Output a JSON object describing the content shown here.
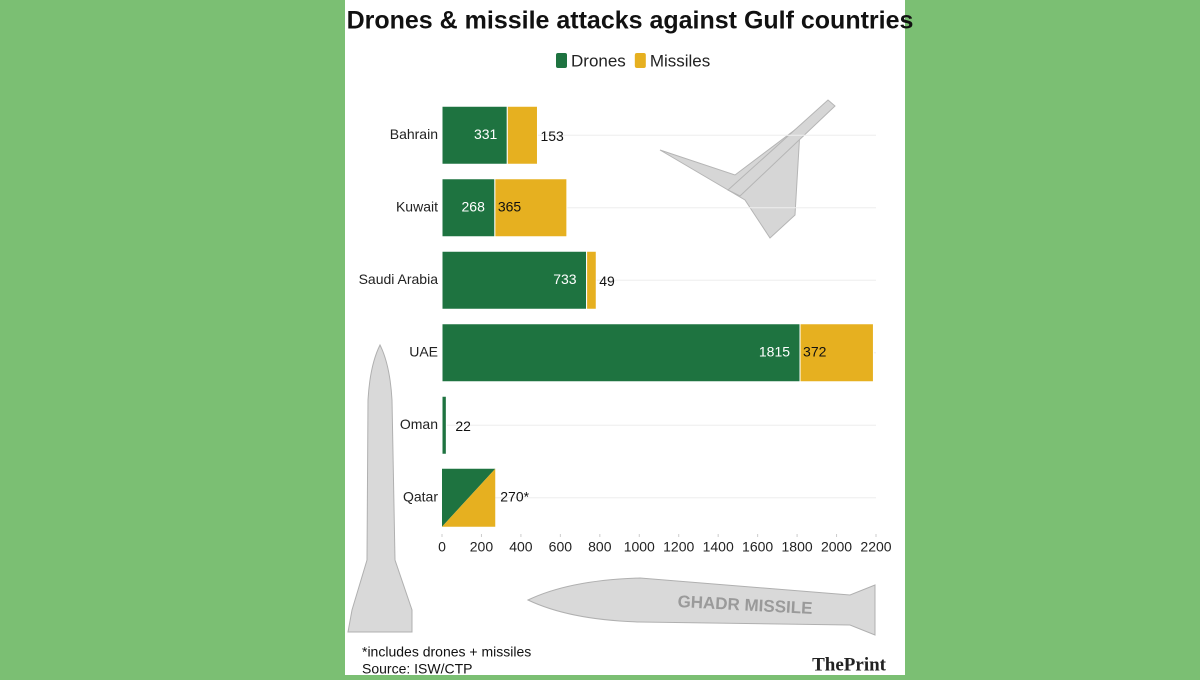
{
  "chart_data": {
    "type": "bar",
    "orientation": "horizontal",
    "stacked": true,
    "title": "Drones & missile attacks against Gulf countries",
    "categories": [
      "Bahrain",
      "Kuwait",
      "Saudi Arabia",
      "UAE",
      "Oman",
      "Qatar"
    ],
    "series": [
      {
        "name": "Drones",
        "color": "#1e7340",
        "values": [
          331,
          268,
          733,
          1815,
          22,
          null
        ]
      },
      {
        "name": "Missiles",
        "color": "#e6b020",
        "values": [
          153,
          365,
          49,
          372,
          null,
          null
        ]
      }
    ],
    "combined_values": [
      null,
      null,
      null,
      null,
      null,
      270
    ],
    "combined_value_labels": [
      null,
      null,
      null,
      null,
      null,
      "270*"
    ],
    "xlim": [
      0,
      2200
    ],
    "xticks": [
      0,
      200,
      400,
      600,
      800,
      1000,
      1200,
      1400,
      1600,
      1800,
      2000,
      2200
    ],
    "legend": "top",
    "footnote": "*includes drones + missiles",
    "source": "Source: ISW/CTP",
    "brand": "ThePrint"
  }
}
